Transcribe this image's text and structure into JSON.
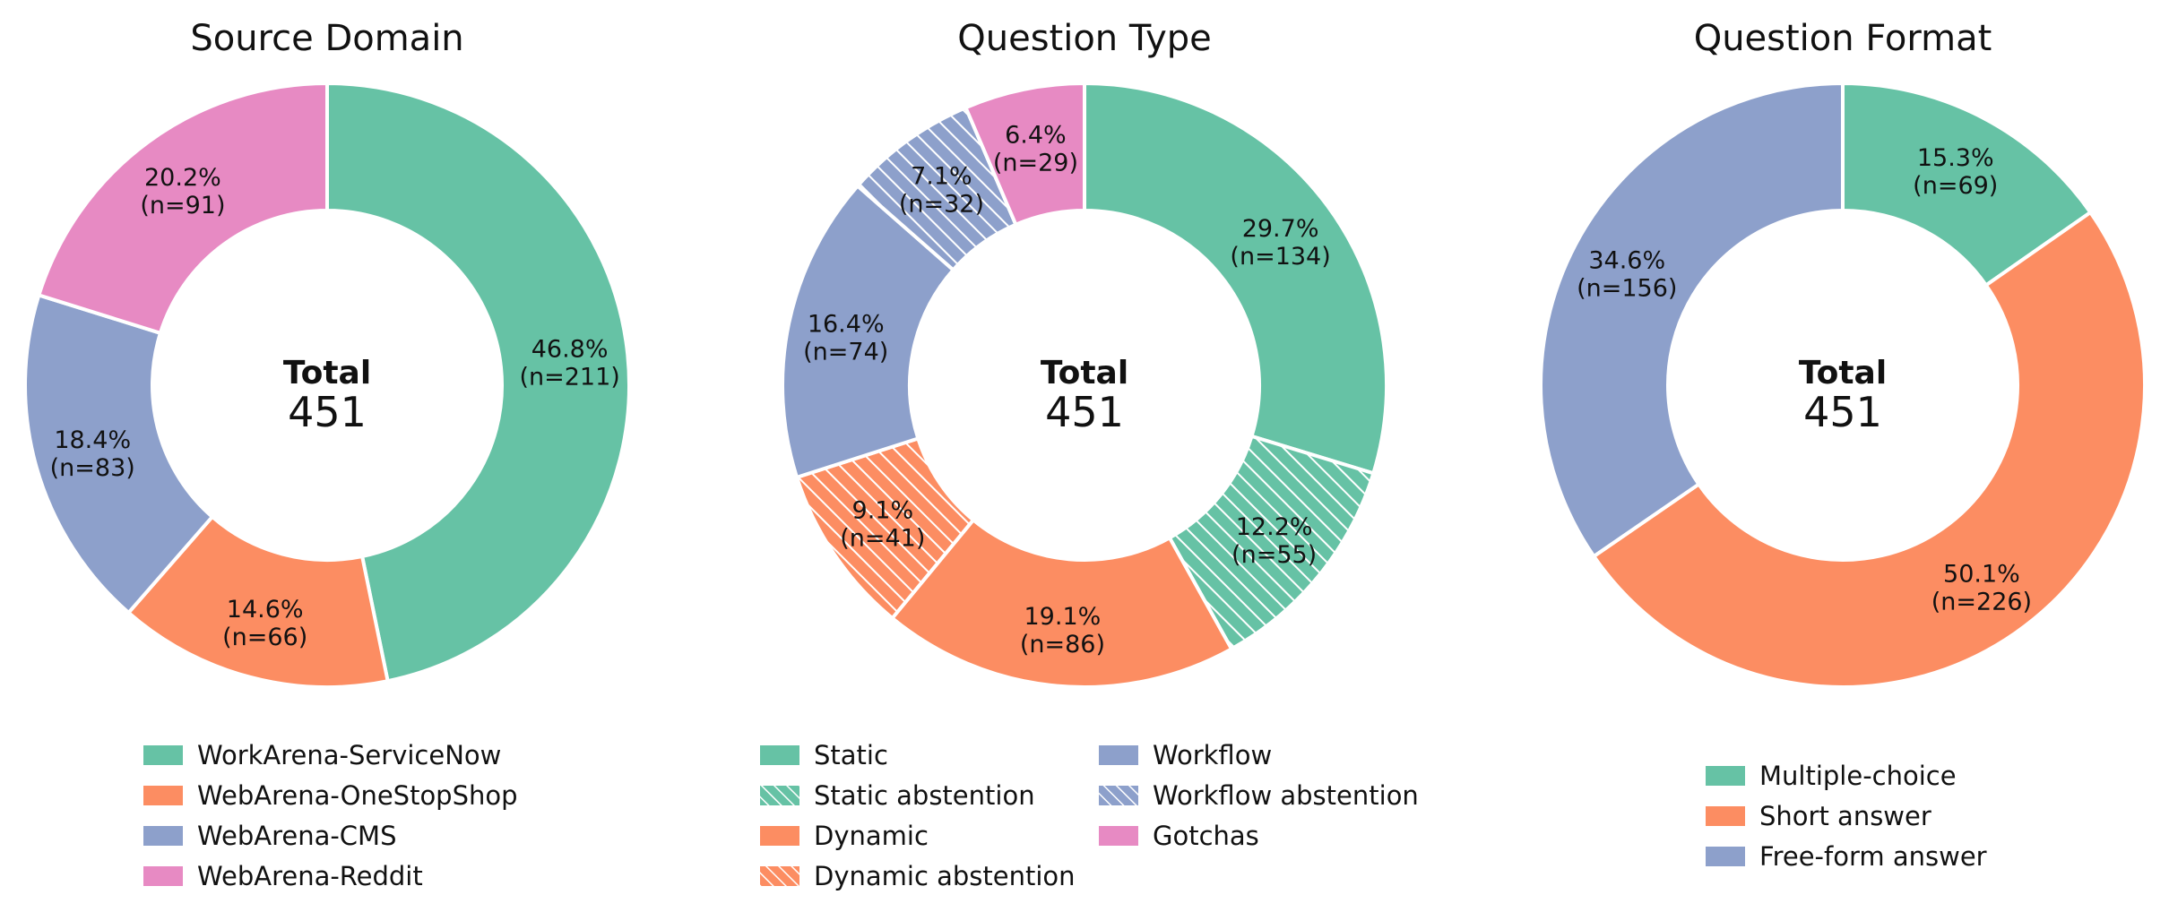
{
  "chart_data": [
    {
      "type": "pie",
      "title": "Source Domain",
      "center_label": "Total",
      "center_value": "451",
      "slices": [
        {
          "label": "WorkArena-ServiceNow",
          "value": 211,
          "pct_text": "46.8%",
          "n_text": "(n=211)",
          "color": "#66c2a5",
          "hatch": false
        },
        {
          "label": "WebArena-OneStopShop",
          "value": 66,
          "pct_text": "14.6%",
          "n_text": "(n=66)",
          "color": "#fc8d62",
          "hatch": false
        },
        {
          "label": "WebArena-CMS",
          "value": 83,
          "pct_text": "18.4%",
          "n_text": "(n=83)",
          "color": "#8da0cb",
          "hatch": false
        },
        {
          "label": "WebArena-Reddit",
          "value": 91,
          "pct_text": "20.2%",
          "n_text": "(n=91)",
          "color": "#e78ac3",
          "hatch": false
        }
      ],
      "legend": [
        "WorkArena-ServiceNow",
        "WebArena-OneStopShop",
        "WebArena-CMS",
        "WebArena-Reddit"
      ]
    },
    {
      "type": "pie",
      "title": "Question Type",
      "center_label": "Total",
      "center_value": "451",
      "slices": [
        {
          "label": "Static",
          "value": 134,
          "pct_text": "29.7%",
          "n_text": "(n=134)",
          "color": "#66c2a5",
          "hatch": false
        },
        {
          "label": "Static abstention",
          "value": 55,
          "pct_text": "12.2%",
          "n_text": "(n=55)",
          "color": "#66c2a5",
          "hatch": true
        },
        {
          "label": "Dynamic",
          "value": 86,
          "pct_text": "19.1%",
          "n_text": "(n=86)",
          "color": "#fc8d62",
          "hatch": false
        },
        {
          "label": "Dynamic abstention",
          "value": 41,
          "pct_text": "9.1%",
          "n_text": "(n=41)",
          "color": "#fc8d62",
          "hatch": true
        },
        {
          "label": "Workflow",
          "value": 74,
          "pct_text": "16.4%",
          "n_text": "(n=74)",
          "color": "#8da0cb",
          "hatch": false
        },
        {
          "label": "Workflow abstention",
          "value": 32,
          "pct_text": "7.1%",
          "n_text": "(n=32)",
          "color": "#8da0cb",
          "hatch": true
        },
        {
          "label": "Gotchas",
          "value": 29,
          "pct_text": "6.4%",
          "n_text": "(n=29)",
          "color": "#e78ac3",
          "hatch": false
        }
      ],
      "legend": [
        "Static",
        "Static abstention",
        "Dynamic",
        "Dynamic abstention",
        "Workflow",
        "Workflow abstention",
        "Gotchas"
      ]
    },
    {
      "type": "pie",
      "title": "Question Format",
      "center_label": "Total",
      "center_value": "451",
      "slices": [
        {
          "label": "Multiple-choice",
          "value": 69,
          "pct_text": "15.3%",
          "n_text": "(n=69)",
          "color": "#66c2a5",
          "hatch": false
        },
        {
          "label": "Short answer",
          "value": 226,
          "pct_text": "50.1%",
          "n_text": "(n=226)",
          "color": "#fc8d62",
          "hatch": false
        },
        {
          "label": "Free-form answer",
          "value": 156,
          "pct_text": "34.6%",
          "n_text": "(n=156)",
          "color": "#8da0cb",
          "hatch": false
        }
      ],
      "legend": [
        "Multiple-choice",
        "Short answer",
        "Free-form answer"
      ]
    }
  ]
}
